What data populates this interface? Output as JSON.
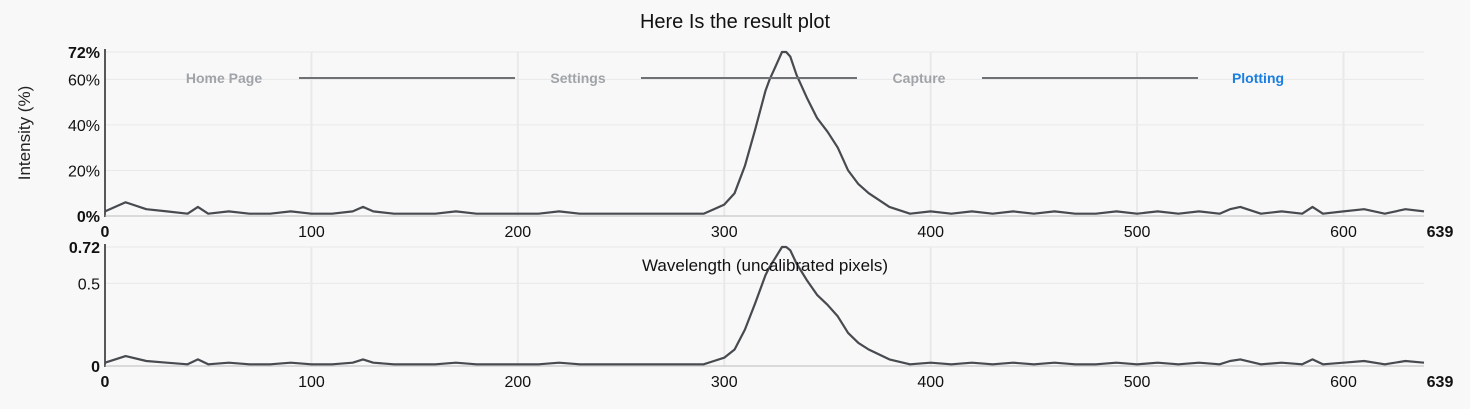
{
  "title": "Here Is the result plot",
  "stepper": {
    "steps": [
      "Home Page",
      "Settings",
      "Capture",
      "Plotting"
    ],
    "active": "Plotting"
  },
  "colors": {
    "line": "#474a4f",
    "active_step": "#1a7fe0",
    "inactive_step": "#a0a4a8"
  },
  "chart_data": [
    {
      "type": "line",
      "title": "",
      "xlabel": "",
      "ylabel": "Intensity (%)",
      "xlim": [
        0,
        639
      ],
      "ylim": [
        0,
        72
      ],
      "xticks": [
        "0",
        "100",
        "200",
        "300",
        "400",
        "500",
        "600",
        "639"
      ],
      "yticks": [
        "0%",
        "20%",
        "40%",
        "60%",
        "72%"
      ],
      "grid": true,
      "series": [
        {
          "x": [
            0,
            10,
            20,
            30,
            40,
            45,
            50,
            60,
            70,
            80,
            90,
            100,
            110,
            120,
            125,
            130,
            140,
            150,
            160,
            170,
            180,
            190,
            200,
            210,
            220,
            230,
            240,
            250,
            260,
            270,
            280,
            290,
            295,
            300,
            305,
            310,
            315,
            320,
            322,
            325,
            328,
            330,
            332,
            335,
            340,
            345,
            350,
            355,
            360,
            365,
            370,
            380,
            390,
            400,
            410,
            420,
            430,
            440,
            450,
            460,
            470,
            480,
            490,
            500,
            510,
            520,
            530,
            540,
            545,
            550,
            560,
            570,
            580,
            585,
            590,
            600,
            610,
            620,
            630,
            639
          ],
          "y": [
            2,
            6,
            3,
            2,
            1,
            4,
            1,
            2,
            1,
            1,
            2,
            1,
            1,
            2,
            4,
            2,
            1,
            1,
            1,
            2,
            1,
            1,
            1,
            1,
            2,
            1,
            1,
            1,
            1,
            1,
            1,
            1,
            3,
            5,
            10,
            22,
            38,
            55,
            60,
            66,
            72,
            72,
            70,
            62,
            52,
            43,
            37,
            30,
            20,
            14,
            10,
            4,
            1,
            2,
            1,
            2,
            1,
            2,
            1,
            2,
            1,
            1,
            2,
            1,
            2,
            1,
            2,
            1,
            3,
            4,
            1,
            2,
            1,
            4,
            1,
            2,
            3,
            1,
            3,
            2
          ]
        }
      ]
    },
    {
      "type": "line",
      "title": "",
      "xlabel": "Wavelength (uncalibrated pixels)",
      "ylabel": "",
      "xlim": [
        0,
        639
      ],
      "ylim": [
        0,
        0.72
      ],
      "xticks": [
        "0",
        "100",
        "200",
        "300",
        "400",
        "500",
        "600",
        "639"
      ],
      "yticks": [
        "0",
        "0.5",
        "0.72"
      ],
      "grid": true,
      "series": [
        {
          "x": [
            0,
            10,
            20,
            30,
            40,
            45,
            50,
            60,
            70,
            80,
            90,
            100,
            110,
            120,
            125,
            130,
            140,
            150,
            160,
            170,
            180,
            190,
            200,
            210,
            220,
            230,
            240,
            250,
            260,
            270,
            280,
            290,
            295,
            300,
            305,
            310,
            315,
            320,
            322,
            325,
            328,
            330,
            332,
            335,
            340,
            345,
            350,
            355,
            360,
            365,
            370,
            380,
            390,
            400,
            410,
            420,
            430,
            440,
            450,
            460,
            470,
            480,
            490,
            500,
            510,
            520,
            530,
            540,
            545,
            550,
            560,
            570,
            580,
            585,
            590,
            600,
            610,
            620,
            630,
            639
          ],
          "y": [
            0.02,
            0.06,
            0.03,
            0.02,
            0.01,
            0.04,
            0.01,
            0.02,
            0.01,
            0.01,
            0.02,
            0.01,
            0.01,
            0.02,
            0.04,
            0.02,
            0.01,
            0.01,
            0.01,
            0.02,
            0.01,
            0.01,
            0.01,
            0.01,
            0.02,
            0.01,
            0.01,
            0.01,
            0.01,
            0.01,
            0.01,
            0.01,
            0.03,
            0.05,
            0.1,
            0.22,
            0.38,
            0.55,
            0.6,
            0.66,
            0.72,
            0.72,
            0.7,
            0.62,
            0.52,
            0.43,
            0.37,
            0.3,
            0.2,
            0.14,
            0.1,
            0.04,
            0.01,
            0.02,
            0.01,
            0.02,
            0.01,
            0.02,
            0.01,
            0.02,
            0.01,
            0.01,
            0.02,
            0.01,
            0.02,
            0.01,
            0.02,
            0.01,
            0.03,
            0.04,
            0.01,
            0.02,
            0.01,
            0.04,
            0.01,
            0.02,
            0.03,
            0.01,
            0.03,
            0.02
          ]
        }
      ]
    }
  ]
}
